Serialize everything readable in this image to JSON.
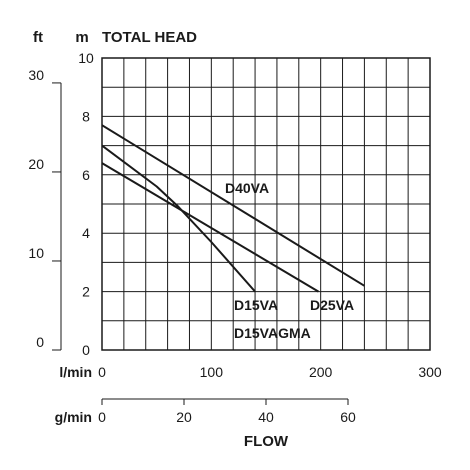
{
  "chart_data": {
    "type": "line",
    "title": "TOTAL HEAD",
    "unit_ft": "ft",
    "unit_m": "m",
    "xlabel": "FLOW",
    "x_unit_lmin": "l/min",
    "x_unit_gmin": "g/min",
    "xlim_lmin": [
      0,
      300
    ],
    "xticks_lmin": [
      "0",
      "100",
      "200",
      "300"
    ],
    "xlim_gmin": [
      0,
      80
    ],
    "xticks_gmin": [
      "0",
      "20",
      "40",
      "60"
    ],
    "ylim_m": [
      0,
      10
    ],
    "yticks_m": [
      "0",
      "2",
      "4",
      "6",
      "8",
      "10"
    ],
    "ylim_ft": [
      0,
      32.8
    ],
    "yticks_ft": [
      "0",
      "10",
      "20",
      "30"
    ],
    "grid": true,
    "series": [
      {
        "name": "D40VA",
        "color": "#1a1a1a",
        "x": [
          0,
          240
        ],
        "y": [
          7.7,
          2.2
        ]
      },
      {
        "name": "D25VA",
        "color": "#1a1a1a",
        "x": [
          0,
          198
        ],
        "y": [
          6.4,
          2.0
        ]
      },
      {
        "name": "D15VA",
        "color": "#1a1a1a",
        "x": [
          0,
          50,
          70,
          100,
          140
        ],
        "y": [
          7.0,
          5.6,
          4.9,
          3.7,
          2.0
        ]
      }
    ],
    "annotations": [
      "D15VAGMA"
    ]
  }
}
